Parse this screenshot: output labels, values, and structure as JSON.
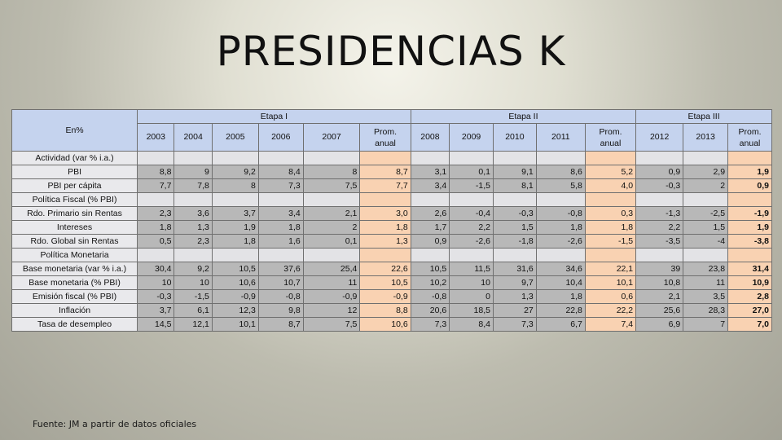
{
  "title": "PRESIDENCIAS K",
  "table": {
    "corner": "En%",
    "etapas": [
      "Etapa I",
      "Etapa II",
      "Etapa III"
    ],
    "years": [
      "2003",
      "2004",
      "2005",
      "2006",
      "2007",
      "Prom. anual",
      "2008",
      "2009",
      "2010",
      "2011",
      "Prom. anual",
      "2012",
      "2013",
      "Prom. anual"
    ],
    "rows": [
      {
        "label": "Actividad (var % i.a.)",
        "section": true,
        "values": []
      },
      {
        "label": "PBI",
        "values": [
          "8,8",
          "9",
          "9,2",
          "8,4",
          "8",
          "8,7",
          "3,1",
          "0,1",
          "9,1",
          "8,6",
          "5,2",
          "0,9",
          "2,9",
          "1,9"
        ]
      },
      {
        "label": "PBI per cápita",
        "values": [
          "7,7",
          "7,8",
          "8",
          "7,3",
          "7,5",
          "7,7",
          "3,4",
          "-1,5",
          "8,1",
          "5,8",
          "4,0",
          "-0,3",
          "2",
          "0,9"
        ]
      },
      {
        "label": "Política Fiscal (% PBI)",
        "section": true,
        "values": []
      },
      {
        "label": "Rdo. Primario sin Rentas",
        "values": [
          "2,3",
          "3,6",
          "3,7",
          "3,4",
          "2,1",
          "3,0",
          "2,6",
          "-0,4",
          "-0,3",
          "-0,8",
          "0,3",
          "-1,3",
          "-2,5",
          "-1,9"
        ]
      },
      {
        "label": "Intereses",
        "values": [
          "1,8",
          "1,3",
          "1,9",
          "1,8",
          "2",
          "1,8",
          "1,7",
          "2,2",
          "1,5",
          "1,8",
          "1,8",
          "2,2",
          "1,5",
          "1,9"
        ]
      },
      {
        "label": "Rdo. Global sin Rentas",
        "values": [
          "0,5",
          "2,3",
          "1,8",
          "1,6",
          "0,1",
          "1,3",
          "0,9",
          "-2,6",
          "-1,8",
          "-2,6",
          "-1,5",
          "-3,5",
          "-4",
          "-3,8"
        ]
      },
      {
        "label": "Política Monetaria",
        "section": true,
        "values": []
      },
      {
        "label": "Base monetaria (var % i.a.)",
        "values": [
          "30,4",
          "9,2",
          "10,5",
          "37,6",
          "25,4",
          "22,6",
          "10,5",
          "11,5",
          "31,6",
          "34,6",
          "22,1",
          "39",
          "23,8",
          "31,4"
        ]
      },
      {
        "label": "Base monetaria (% PBI)",
        "values": [
          "10",
          "10",
          "10,6",
          "10,7",
          "11",
          "10,5",
          "10,2",
          "10",
          "9,7",
          "10,4",
          "10,1",
          "10,8",
          "11",
          "10,9"
        ]
      },
      {
        "label": "Emisión fiscal (% PBI)",
        "values": [
          "-0,3",
          "-1,5",
          "-0,9",
          "-0,8",
          "-0,9",
          "-0,9",
          "-0,8",
          "0",
          "1,3",
          "1,8",
          "0,6",
          "2,1",
          "3,5",
          "2,8"
        ]
      },
      {
        "label": "Inflación",
        "values": [
          "3,7",
          "6,1",
          "12,3",
          "9,8",
          "12",
          "8,8",
          "20,6",
          "18,5",
          "27",
          "22,8",
          "22,2",
          "25,6",
          "28,3",
          "27,0"
        ]
      },
      {
        "label": "Tasa de desempleo",
        "values": [
          "14,5",
          "12,1",
          "10,1",
          "8,7",
          "7,5",
          "10,6",
          "7,3",
          "8,4",
          "7,3",
          "6,7",
          "7,4",
          "6,9",
          "7",
          "7,0"
        ]
      }
    ]
  },
  "source": "Fuente: JM a partir de datos oficiales",
  "colors": {
    "header": "#c5d3ee",
    "value_cell": "#b8b8b8",
    "average_cell": "#f9d2b2",
    "label_cell": "#e9e9ec"
  }
}
